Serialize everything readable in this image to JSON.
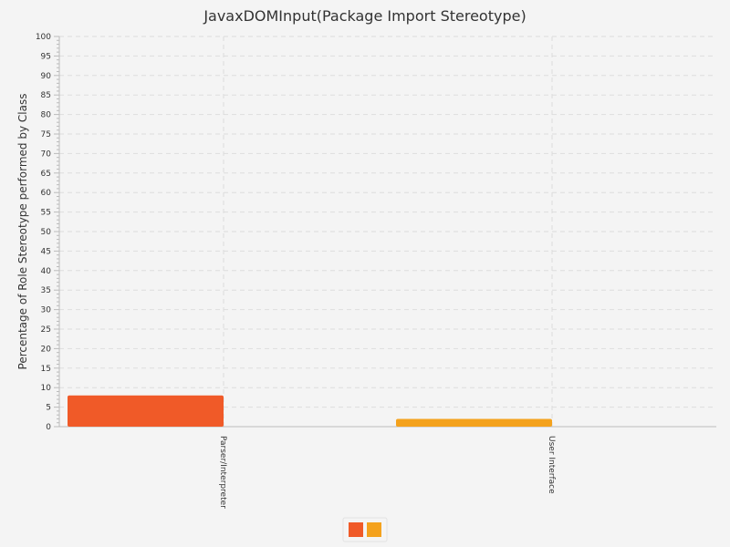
{
  "chart_data": {
    "type": "bar",
    "title": "JavaxDOMInput(Package Import Stereotype)",
    "ylabel": "Percentage of Role Stereotype performed by Class",
    "xlabel": "",
    "categories": [
      "Parser/Interpreter",
      "User Interface"
    ],
    "values": [
      8,
      2
    ],
    "bar_colors": [
      "#f05a28",
      "#f4a21d"
    ],
    "ylim": [
      0,
      100
    ],
    "y_major_step": 5,
    "y_minor_step": 1,
    "grid": true,
    "legend": {
      "placement": "bottom-center",
      "swatches": [
        "#f05a28",
        "#f4a21d"
      ]
    }
  },
  "colors": {
    "background": "#f4f4f4",
    "grid": "#dddddd",
    "axis": "#bbbbbb",
    "text": "#333333"
  }
}
